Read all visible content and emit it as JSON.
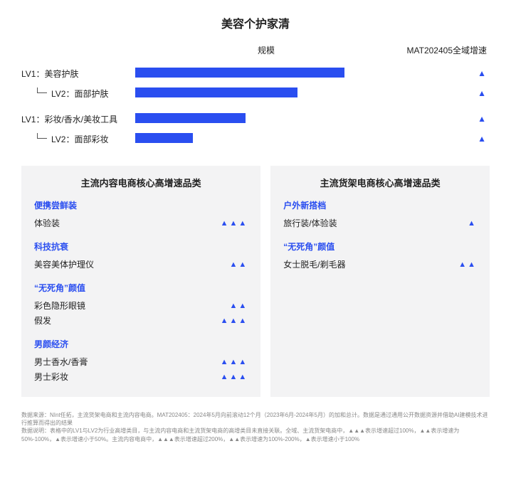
{
  "colors": {
    "bar": "#2a4ef0",
    "accent": "#2a4ef0",
    "panel_bg": "#f3f3f4",
    "text": "#222222",
    "muted": "#888888",
    "background": "#ffffff"
  },
  "title": "美容个护家清",
  "chart": {
    "type": "bar",
    "header_scale": "规模",
    "header_growth": "MAT202405全域增速",
    "bar_max_percent": 100,
    "triangle_glyph": "▲",
    "rows": [
      {
        "level": 1,
        "label": "LV1：美容护肤",
        "bar_pct": 80,
        "growth_tris": 1
      },
      {
        "level": 2,
        "label": "LV2：面部护肤",
        "bar_pct": 62,
        "growth_tris": 1
      },
      {
        "level": 1,
        "label": "LV1：彩妆/香水/美妆工具",
        "bar_pct": 42,
        "growth_tris": 1
      },
      {
        "level": 2,
        "label": "LV2：面部彩妆",
        "bar_pct": 22,
        "growth_tris": 1
      }
    ]
  },
  "panels": {
    "left": {
      "title": "主流内容电商核心高增速品类",
      "groups": [
        {
          "title": "便携尝鲜装",
          "items": [
            {
              "name": "体验装",
              "tris": 3
            }
          ]
        },
        {
          "title": "科技抗衰",
          "items": [
            {
              "name": "美容美体护理仪",
              "tris": 2
            }
          ]
        },
        {
          "title": "“无死角”颜值",
          "items": [
            {
              "name": "彩色隐形眼镜",
              "tris": 2
            },
            {
              "name": "假发",
              "tris": 3
            }
          ]
        },
        {
          "title": "男颜经济",
          "items": [
            {
              "name": "男士香水/香膏",
              "tris": 3
            },
            {
              "name": "男士彩妆",
              "tris": 3
            }
          ]
        }
      ]
    },
    "right": {
      "title": "主流货架电商核心高增速品类",
      "groups": [
        {
          "title": "户外新搭档",
          "items": [
            {
              "name": "旅行装/体验装",
              "tris": 1
            }
          ]
        },
        {
          "title": "“无死角”颜值",
          "items": [
            {
              "name": "女士脱毛/剃毛器",
              "tris": 2
            }
          ]
        }
      ]
    }
  },
  "footnotes": [
    "数据来源：NInt任拓，主流货架电商和主流内容电商。MAT202405：2024年5月向前滚动12个月（2023年6月-2024年5月）的加和总计。数据是通过通用公开数据资源并借助AI建模技术进行推算而得出的结果",
    "数据说明：表格中的LV1与LV2为行业高增类目，与主流内容电商和主流货架电商的高增类目未直接关联。全域、主流货架电商中，▲▲▲表示增速超过100%，▲▲表示增速为50%-100%，▲表示增速小于50%。主流内容电商中，▲▲▲表示增速超过200%，▲▲表示增速为100%-200%，▲表示增速小于100%"
  ]
}
